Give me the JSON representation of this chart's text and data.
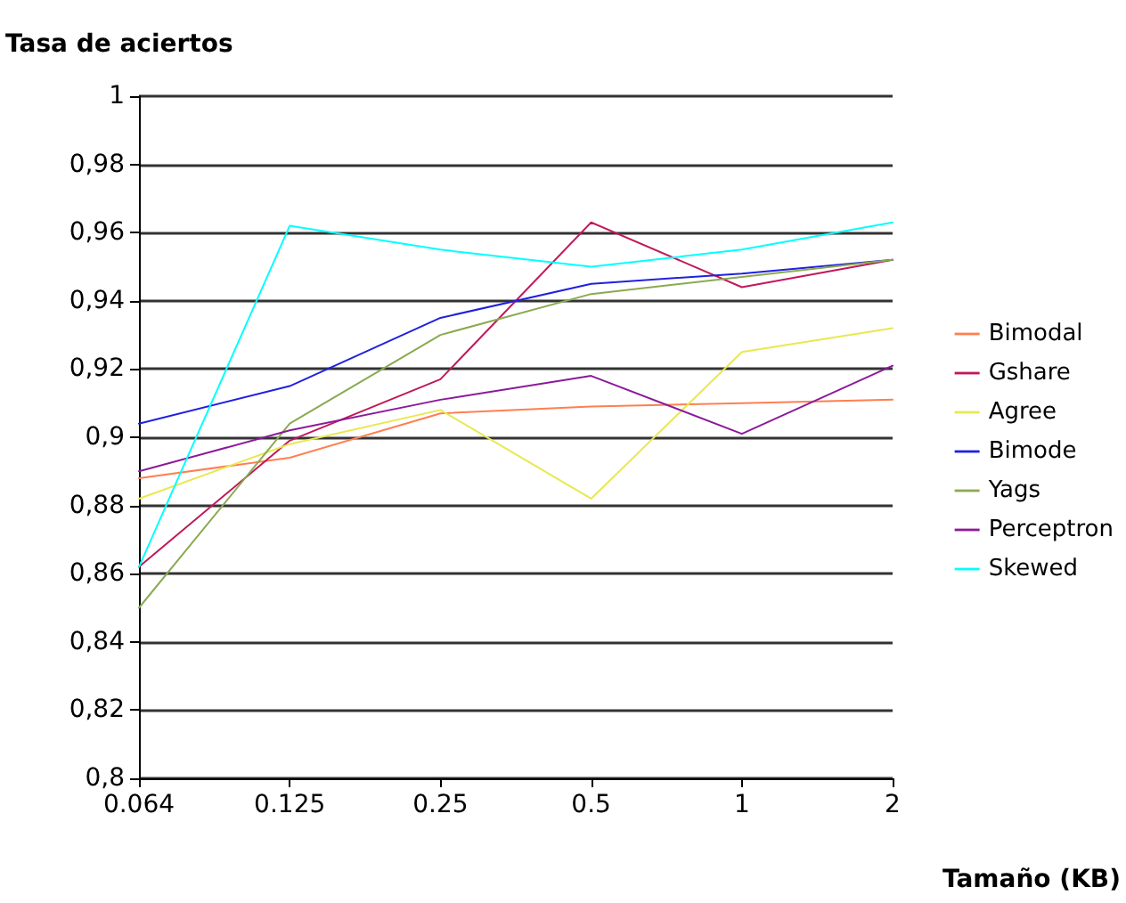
{
  "chart_data": {
    "type": "line",
    "xlabel": "Tamaño (KB)",
    "ylabel": "Tasa de aciertos",
    "categories": [
      "0.064",
      "0.125",
      "0.25",
      "0.5",
      "1",
      "2"
    ],
    "series": [
      {
        "name": "Bimodal",
        "color": "#ff7f50",
        "values": [
          0.888,
          0.894,
          0.907,
          0.909,
          0.91,
          0.911
        ]
      },
      {
        "name": "Gshare",
        "color": "#c0185a",
        "values": [
          0.862,
          0.899,
          0.917,
          0.963,
          0.944,
          0.952
        ]
      },
      {
        "name": "Agree",
        "color": "#e8e850",
        "values": [
          0.882,
          0.898,
          0.908,
          0.882,
          0.925,
          0.932
        ]
      },
      {
        "name": "Bimode",
        "color": "#2020e0",
        "values": [
          0.904,
          0.915,
          0.935,
          0.945,
          0.948,
          0.952
        ]
      },
      {
        "name": "Yags",
        "color": "#8aaa50",
        "values": [
          0.85,
          0.904,
          0.93,
          0.942,
          0.947,
          0.952
        ]
      },
      {
        "name": "Perceptron",
        "color": "#8b1a9a",
        "values": [
          0.89,
          0.902,
          0.911,
          0.918,
          0.901,
          0.921
        ]
      },
      {
        "name": "Skewed",
        "color": "#00ffff",
        "values": [
          0.862,
          0.962,
          0.955,
          0.95,
          0.955,
          0.963
        ]
      }
    ],
    "ylim": [
      0.8,
      1
    ],
    "yticks": [
      {
        "value": 0.8,
        "label": "0,8"
      },
      {
        "value": 0.82,
        "label": "0,82"
      },
      {
        "value": 0.84,
        "label": "0,84"
      },
      {
        "value": 0.86,
        "label": "0,86"
      },
      {
        "value": 0.88,
        "label": "0,88"
      },
      {
        "value": 0.9,
        "label": "0,9"
      },
      {
        "value": 0.92,
        "label": "0,92"
      },
      {
        "value": 0.94,
        "label": "0,94"
      },
      {
        "value": 0.96,
        "label": "0,96"
      },
      {
        "value": 0.98,
        "label": "0,98"
      },
      {
        "value": 1,
        "label": "1"
      }
    ],
    "grid": "y",
    "legend": "right",
    "marker": "none",
    "line_style": "solid"
  }
}
